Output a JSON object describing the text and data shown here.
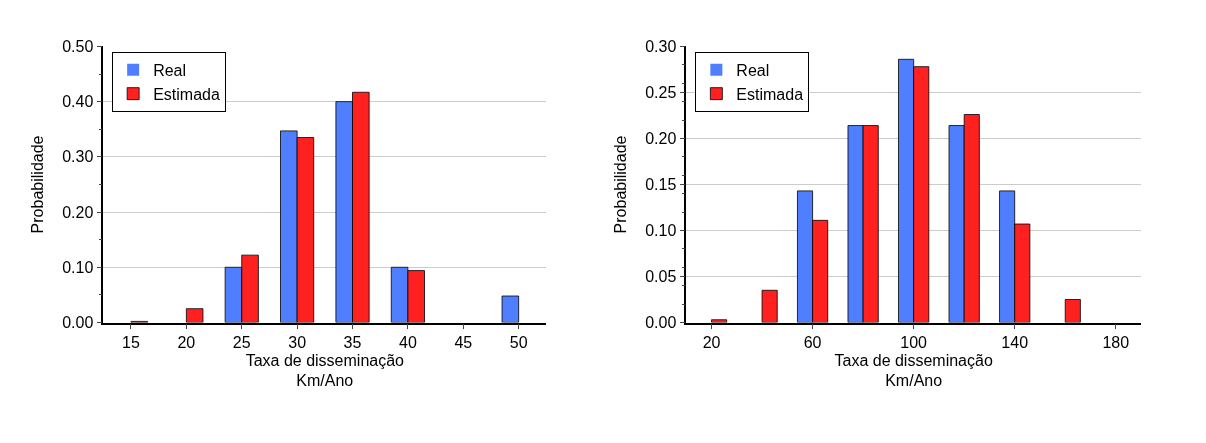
{
  "chart_data": [
    {
      "type": "bar",
      "xlabel": "Taxa de disseminação\nKm/Ano",
      "ylabel": "Probabilidade",
      "categories": [
        "15",
        "20",
        "25",
        "30",
        "35",
        "40",
        "45",
        "50"
      ],
      "series": [
        {
          "name": "Real",
          "color": "#4f7fff",
          "values": [
            0,
            0,
            0.1,
            0.347,
            0.4,
            0.1,
            0,
            0.048
          ]
        },
        {
          "name": "Estimada",
          "color": "#ff2020",
          "values": [
            0.002,
            0.025,
            0.122,
            0.335,
            0.417,
            0.094,
            0,
            0
          ]
        }
      ],
      "ylim": [
        0,
        0.5
      ],
      "yticks": [
        {
          "value": 0,
          "label": "0.00"
        },
        {
          "value": 0.1,
          "label": "0.10"
        },
        {
          "value": 0.2,
          "label": "0.20"
        },
        {
          "value": 0.3,
          "label": "0.30"
        },
        {
          "value": 0.4,
          "label": "0.40"
        },
        {
          "value": 0.5,
          "label": "0.50"
        }
      ],
      "grid": "y",
      "legend": "top left"
    },
    {
      "type": "bar",
      "xlabel": "Taxa de disseminação\nKm/Ano",
      "ylabel": "Probabilidade",
      "categories": [
        "20",
        null,
        "60",
        null,
        "100",
        null,
        "140",
        null,
        "180"
      ],
      "series": [
        {
          "name": "Real",
          "color": "#4f7fff",
          "values": [
            0,
            0,
            0.143,
            0.214,
            0.286,
            0.214,
            0.143,
            0,
            0
          ]
        },
        {
          "name": "Estimada",
          "color": "#ff2020",
          "values": [
            0.003,
            0.035,
            0.111,
            0.214,
            0.278,
            0.226,
            0.107,
            0.025,
            0
          ]
        }
      ],
      "ylim": [
        0,
        0.3
      ],
      "yticks": [
        {
          "value": 0,
          "label": "0.00"
        },
        {
          "value": 0.05,
          "label": "0.05"
        },
        {
          "value": 0.1,
          "label": "0.10"
        },
        {
          "value": 0.15,
          "label": "0.15"
        },
        {
          "value": 0.2,
          "label": "0.20"
        },
        {
          "value": 0.25,
          "label": "0.25"
        },
        {
          "value": 0.3,
          "label": "0.30"
        }
      ],
      "grid": "y",
      "legend": "top left"
    }
  ]
}
